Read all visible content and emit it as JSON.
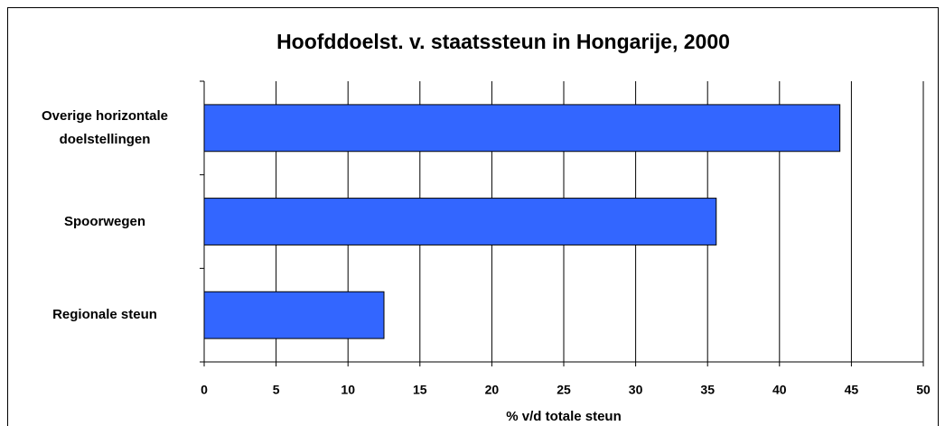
{
  "chart_data": {
    "type": "bar",
    "orientation": "horizontal",
    "title": "Hoofddoelst. v. staatssteun in Hongarije, 2000",
    "x_label": "% v/d totale steun",
    "categories": [
      "Overige horizontale doelstellingen",
      "Spoorwegen",
      "Regionale steun"
    ],
    "values": [
      44.2,
      35.6,
      12.5
    ],
    "color": "#3366ff",
    "xlim": [
      0,
      50
    ],
    "xticks": [
      0,
      5,
      10,
      15,
      20,
      25,
      30,
      35,
      40,
      45,
      50
    ],
    "grid": true
  }
}
